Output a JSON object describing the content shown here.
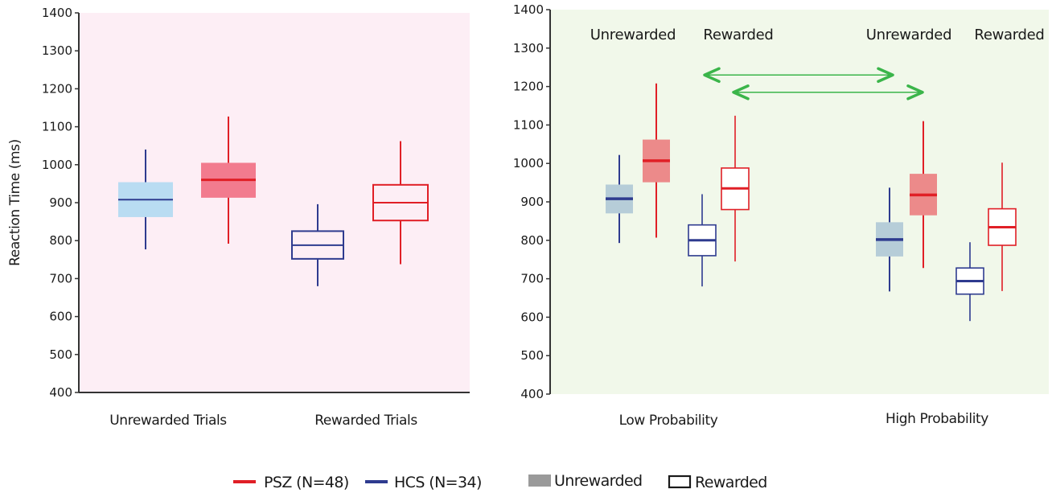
{
  "colors": {
    "psz": "#e01f26",
    "hcs": "#2e3b8f",
    "left_bg": "#fdeef5",
    "right_bg": "#f1f8ea",
    "arrow": "#3bb54a",
    "left_psz_fill": "#f27b8e",
    "left_hcs_fill": "#b9dcf2",
    "right_psz_fill": "#ec8a8a",
    "right_hcs_fill": "#b6cdd8"
  },
  "chart_data": [
    {
      "type": "box",
      "ylabel": "Reaction Time (ms)",
      "ylim": [
        400,
        1400
      ],
      "yticks": [
        400,
        500,
        600,
        700,
        800,
        900,
        1000,
        1100,
        1200,
        1300,
        1400
      ],
      "categories": [
        "Unrewarded Trials",
        "Rewarded Trials"
      ],
      "boxes": [
        {
          "category": "Unrewarded Trials",
          "group": "HCS",
          "style": "filled",
          "fill": "left_hcs_fill",
          "whisker_low": 777,
          "q1": 862,
          "median": 908,
          "q3": 954,
          "whisker_high": 1040
        },
        {
          "category": "Unrewarded Trials",
          "group": "PSZ",
          "style": "filled",
          "fill": "left_psz_fill",
          "whisker_low": 792,
          "q1": 913,
          "median": 960,
          "q3": 1005,
          "whisker_high": 1127
        },
        {
          "category": "Rewarded Trials",
          "group": "HCS",
          "style": "outline",
          "whisker_low": 680,
          "q1": 752,
          "median": 788,
          "q3": 825,
          "whisker_high": 896
        },
        {
          "category": "Rewarded Trials",
          "group": "PSZ",
          "style": "outline",
          "whisker_low": 738,
          "q1": 853,
          "median": 900,
          "q3": 947,
          "whisker_high": 1062
        }
      ]
    },
    {
      "type": "box",
      "ylim": [
        400,
        1400
      ],
      "yticks": [
        400,
        500,
        600,
        700,
        800,
        900,
        1000,
        1100,
        1200,
        1300,
        1400
      ],
      "categories": [
        "Low Probability",
        "High Probability"
      ],
      "subgroup_labels": [
        "Unrewarded",
        "Rewarded",
        "Unrewarded",
        "Rewarded"
      ],
      "boxes": [
        {
          "category": "Low Probability",
          "condition": "Unrewarded",
          "group": "HCS",
          "style": "filled",
          "fill": "right_hcs_fill",
          "whisker_low": 793,
          "q1": 870,
          "median": 908,
          "q3": 945,
          "whisker_high": 1022
        },
        {
          "category": "Low Probability",
          "condition": "Unrewarded",
          "group": "PSZ",
          "style": "filled",
          "fill": "right_psz_fill",
          "whisker_low": 807,
          "q1": 951,
          "median": 1007,
          "q3": 1062,
          "whisker_high": 1208
        },
        {
          "category": "Low Probability",
          "condition": "Rewarded",
          "group": "HCS",
          "style": "outline",
          "whisker_low": 680,
          "q1": 760,
          "median": 800,
          "q3": 840,
          "whisker_high": 920
        },
        {
          "category": "Low Probability",
          "condition": "Rewarded",
          "group": "PSZ",
          "style": "outline",
          "whisker_low": 745,
          "q1": 880,
          "median": 935,
          "q3": 988,
          "whisker_high": 1124
        },
        {
          "category": "High Probability",
          "condition": "Unrewarded",
          "group": "HCS",
          "style": "filled",
          "fill": "right_hcs_fill",
          "whisker_low": 667,
          "q1": 758,
          "median": 802,
          "q3": 847,
          "whisker_high": 937
        },
        {
          "category": "High Probability",
          "condition": "Unrewarded",
          "group": "PSZ",
          "style": "filled",
          "fill": "right_psz_fill",
          "whisker_low": 728,
          "q1": 865,
          "median": 918,
          "q3": 973,
          "whisker_high": 1110
        },
        {
          "category": "High Probability",
          "condition": "Rewarded",
          "group": "HCS",
          "style": "outline",
          "whisker_low": 590,
          "q1": 660,
          "median": 694,
          "q3": 728,
          "whisker_high": 795
        },
        {
          "category": "High Probability",
          "condition": "Rewarded",
          "group": "PSZ",
          "style": "outline",
          "whisker_low": 668,
          "q1": 787,
          "median": 834,
          "q3": 882,
          "whisker_high": 1002
        }
      ],
      "annotations": [
        {
          "type": "double-arrow",
          "from": "Low Probability / Unrewarded / PSZ",
          "to": "High Probability / Unrewarded / PSZ",
          "y": 1230
        },
        {
          "type": "double-arrow",
          "from": "Low Probability / Rewarded / PSZ",
          "to": "High Probability / Rewarded / PSZ",
          "y": 1185
        }
      ]
    }
  ],
  "legend": {
    "placement": "bottom-center",
    "items": [
      {
        "label": "PSZ (N=48)",
        "marker": "line",
        "color": "psz"
      },
      {
        "label": "HCS (N=34)",
        "marker": "line",
        "color": "hcs"
      },
      {
        "label": "Unrewarded",
        "marker": "filled-square"
      },
      {
        "label": "Rewarded",
        "marker": "outline-square"
      }
    ]
  }
}
